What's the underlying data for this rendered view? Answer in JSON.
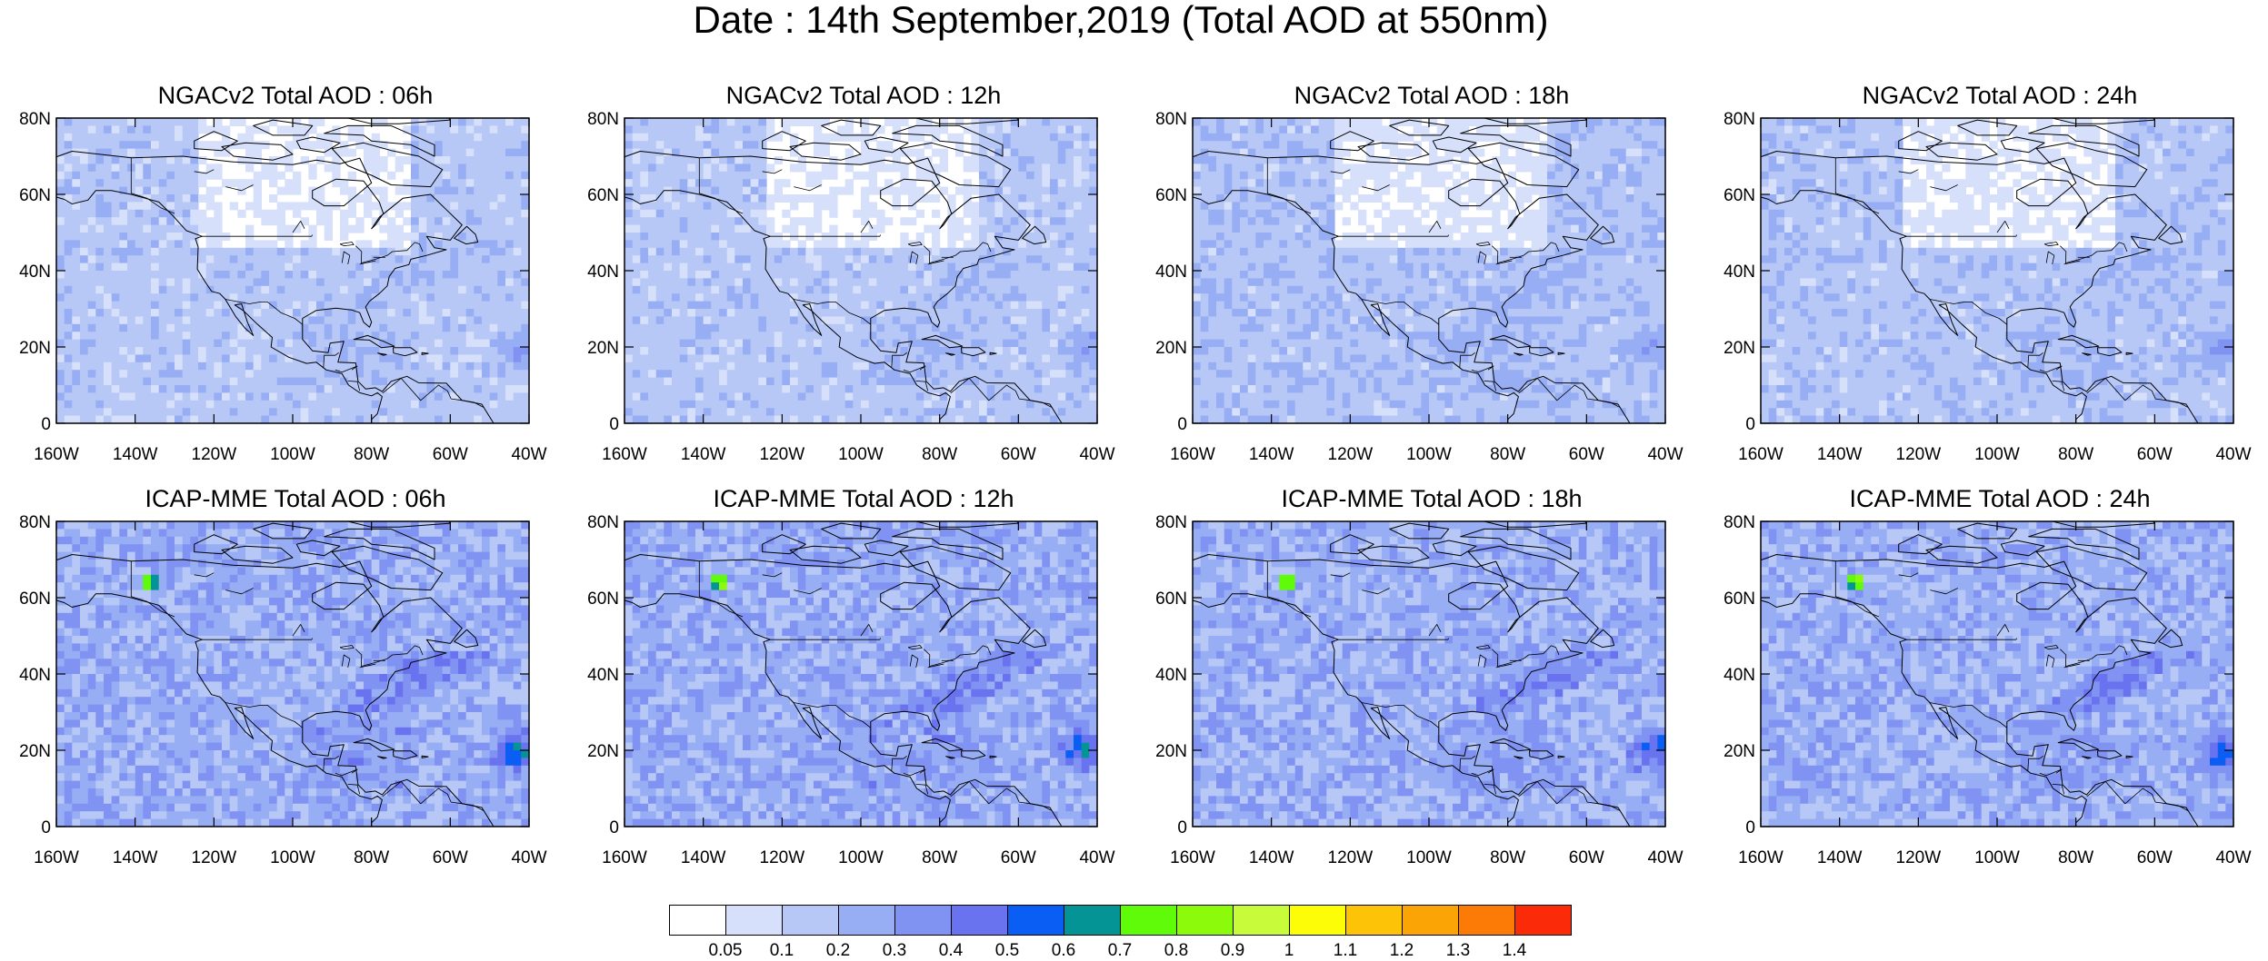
{
  "title": "Date : 14th September,2019 (Total AOD at 550nm)",
  "panels": [
    {
      "title": "NGACv2 Total AOD : 06h",
      "model": "NGACv2",
      "hour": "06h",
      "intensity": 0.15
    },
    {
      "title": "NGACv2 Total AOD : 12h",
      "model": "NGACv2",
      "hour": "12h",
      "intensity": 0.15
    },
    {
      "title": "NGACv2 Total AOD : 18h",
      "model": "NGACv2",
      "hour": "18h",
      "intensity": 0.17
    },
    {
      "title": "NGACv2 Total AOD : 24h",
      "model": "NGACv2",
      "hour": "24h",
      "intensity": 0.16
    },
    {
      "title": "ICAP-MME Total AOD : 06h",
      "model": "ICAP-MME",
      "hour": "06h",
      "intensity": 0.25
    },
    {
      "title": "ICAP-MME Total AOD : 12h",
      "model": "ICAP-MME",
      "hour": "12h",
      "intensity": 0.25
    },
    {
      "title": "ICAP-MME Total AOD : 18h",
      "model": "ICAP-MME",
      "hour": "18h",
      "intensity": 0.24
    },
    {
      "title": "ICAP-MME Total AOD : 24h",
      "model": "ICAP-MME",
      "hour": "24h",
      "intensity": 0.24
    }
  ],
  "lat_ticks": [
    "80N",
    "60N",
    "40N",
    "20N",
    "0"
  ],
  "lon_ticks": [
    "160W",
    "140W",
    "120W",
    "100W",
    "80W",
    "60W",
    "40W"
  ],
  "map_extent": {
    "lon_min": -160,
    "lon_max": -40,
    "lat_min": 0,
    "lat_max": 80
  },
  "colorbar": {
    "labels": [
      "0.05",
      "0.1",
      "0.2",
      "0.3",
      "0.4",
      "0.5",
      "0.6",
      "0.7",
      "0.8",
      "0.9",
      "1",
      "1.1",
      "1.2",
      "1.3",
      "1.4"
    ],
    "colors": [
      "#ffffff",
      "#d6e0fb",
      "#b7c8f7",
      "#98aef4",
      "#8193f2",
      "#6a73ef",
      "#0a5ef4",
      "#049496",
      "#5ffb09",
      "#8cfb0b",
      "#c8fb3a",
      "#fcfd06",
      "#fcc307",
      "#fba406",
      "#fb7b06",
      "#fb2a09"
    ]
  }
}
